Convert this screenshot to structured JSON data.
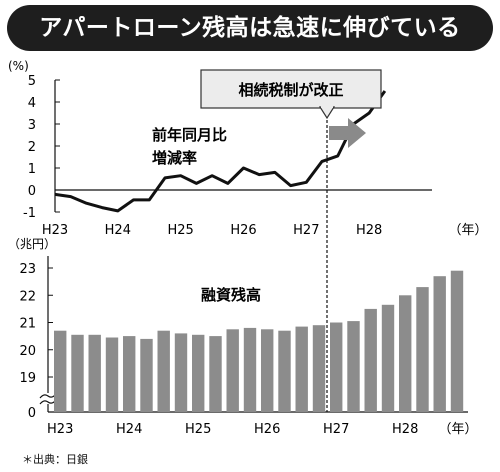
{
  "banner": {
    "title": "アパートローン残高は急速に伸びている"
  },
  "source_note": "＊出典：日銀",
  "colors": {
    "banner_bg": "#1e1e1e",
    "line": "#111111",
    "bar": "#8c8c8c",
    "callout_bg": "#ececec",
    "arrow": "#8a8a8a"
  },
  "callout": {
    "text": "相続税制が改正",
    "at_x": "H27"
  },
  "chart_data": [
    {
      "type": "line",
      "unit": "(%)",
      "label": "前年同月比\n増減率",
      "ylim": [
        -1,
        5
      ],
      "yticks": [
        -1,
        0,
        1,
        2,
        3,
        4,
        5
      ],
      "xlim": [
        2011,
        2017
      ],
      "xticks": [
        {
          "x": 2011,
          "label": "H23"
        },
        {
          "x": 2012,
          "label": "H24"
        },
        {
          "x": 2013,
          "label": "H25"
        },
        {
          "x": 2014,
          "label": "H26"
        },
        {
          "x": 2015,
          "label": "H27"
        },
        {
          "x": 2016,
          "label": "H28"
        }
      ],
      "x_unit": "（年）",
      "grid": false,
      "points": [
        {
          "x": 2011.0,
          "y": -0.2
        },
        {
          "x": 2011.25,
          "y": -0.3
        },
        {
          "x": 2011.5,
          "y": -0.6
        },
        {
          "x": 2011.75,
          "y": -0.8
        },
        {
          "x": 2012.0,
          "y": -0.95
        },
        {
          "x": 2012.25,
          "y": -0.45
        },
        {
          "x": 2012.5,
          "y": -0.45
        },
        {
          "x": 2012.75,
          "y": 0.55
        },
        {
          "x": 2013.0,
          "y": 0.65
        },
        {
          "x": 2013.25,
          "y": 0.3
        },
        {
          "x": 2013.5,
          "y": 0.65
        },
        {
          "x": 2013.75,
          "y": 0.3
        },
        {
          "x": 2014.0,
          "y": 1.0
        },
        {
          "x": 2014.25,
          "y": 0.7
        },
        {
          "x": 2014.5,
          "y": 0.8
        },
        {
          "x": 2014.75,
          "y": 0.2
        },
        {
          "x": 2015.0,
          "y": 0.35
        },
        {
          "x": 2015.25,
          "y": 1.3
        },
        {
          "x": 2015.5,
          "y": 1.55
        },
        {
          "x": 2015.75,
          "y": 3.0
        },
        {
          "x": 2016.0,
          "y": 3.5
        },
        {
          "x": 2016.25,
          "y": 4.5
        }
      ]
    },
    {
      "type": "bar",
      "unit": "（兆円）",
      "label": "融資残高",
      "ylim": [
        18,
        23
      ],
      "yticks": [
        0,
        19,
        20,
        21,
        22,
        23
      ],
      "axis_break": true,
      "x_labels": [
        "H23",
        "H24",
        "H25",
        "H26",
        "H27",
        "H28"
      ],
      "x_unit": "（年）",
      "label_every": 4,
      "values": [
        20.7,
        20.55,
        20.55,
        20.45,
        20.5,
        20.4,
        20.7,
        20.6,
        20.55,
        20.5,
        20.75,
        20.8,
        20.75,
        20.7,
        20.85,
        20.9,
        21.0,
        21.05,
        21.5,
        21.65,
        22.0,
        22.3,
        22.7,
        22.9
      ]
    }
  ]
}
